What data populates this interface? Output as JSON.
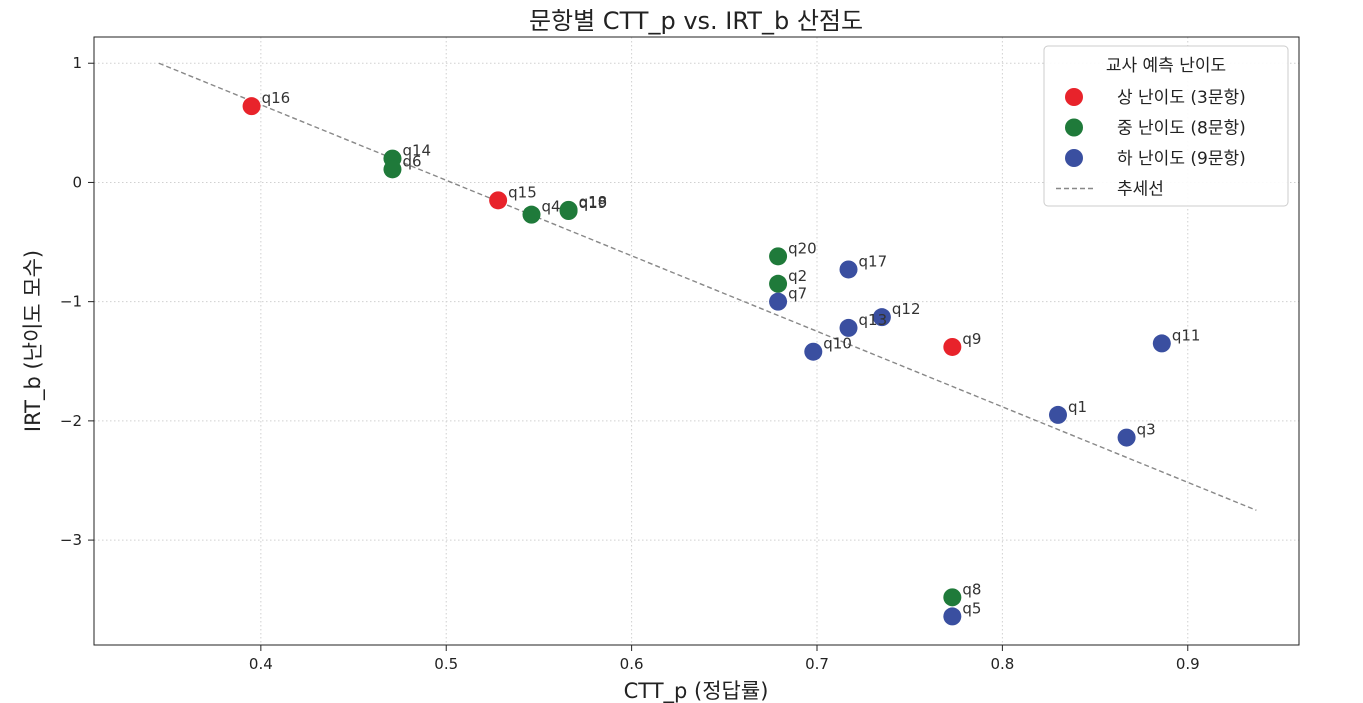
{
  "chart_data": {
    "type": "scatter",
    "title": "문항별 CTT_p vs. IRT_b 산점도",
    "xlabel": "CTT_p (정답률)",
    "ylabel": "IRT_b (난이도 모수)",
    "xlim": [
      0.31,
      0.96
    ],
    "ylim": [
      -3.88,
      1.22
    ],
    "xticks": [
      "0.4",
      "0.5",
      "0.6",
      "0.7",
      "0.8",
      "0.9"
    ],
    "yticks": [
      "1",
      "0",
      "−1",
      "−2",
      "−3"
    ],
    "grid": true,
    "legend": {
      "title": "교사 예측 난이도",
      "position": "top-right"
    },
    "series": [
      {
        "name": "상 난이도 (3문항)",
        "color": "#e8232b",
        "points": [
          {
            "label": "q16",
            "x": 0.395,
            "y": 0.64
          },
          {
            "label": "q15",
            "x": 0.528,
            "y": -0.15
          },
          {
            "label": "q9",
            "x": 0.773,
            "y": -1.38
          }
        ]
      },
      {
        "name": "중 난이도 (8문항)",
        "color": "#1f7a3a",
        "points": [
          {
            "label": "q14",
            "x": 0.471,
            "y": 0.2
          },
          {
            "label": "q6",
            "x": 0.471,
            "y": 0.11
          },
          {
            "label": "q4",
            "x": 0.546,
            "y": -0.27
          },
          {
            "label": "q18",
            "x": 0.566,
            "y": -0.23
          },
          {
            "label": "q19",
            "x": 0.566,
            "y": -0.24
          },
          {
            "label": "q20",
            "x": 0.679,
            "y": -0.62
          },
          {
            "label": "q2",
            "x": 0.679,
            "y": -0.85
          },
          {
            "label": "q8",
            "x": 0.773,
            "y": -3.48
          }
        ]
      },
      {
        "name": "하 난이도 (9문항)",
        "color": "#3a4fa0",
        "points": [
          {
            "label": "q17",
            "x": 0.717,
            "y": -0.73
          },
          {
            "label": "q7",
            "x": 0.679,
            "y": -1.0
          },
          {
            "label": "q12",
            "x": 0.735,
            "y": -1.13
          },
          {
            "label": "q13",
            "x": 0.717,
            "y": -1.22
          },
          {
            "label": "q10",
            "x": 0.698,
            "y": -1.42
          },
          {
            "label": "q11",
            "x": 0.886,
            "y": -1.35
          },
          {
            "label": "q1",
            "x": 0.83,
            "y": -1.95
          },
          {
            "label": "q3",
            "x": 0.867,
            "y": -2.14
          },
          {
            "label": "q5",
            "x": 0.773,
            "y": -3.64
          }
        ]
      }
    ],
    "trendline": {
      "name": "추세선",
      "color": "#888888",
      "x": [
        0.345,
        0.937
      ],
      "y": [
        1.0,
        -2.75
      ]
    }
  }
}
